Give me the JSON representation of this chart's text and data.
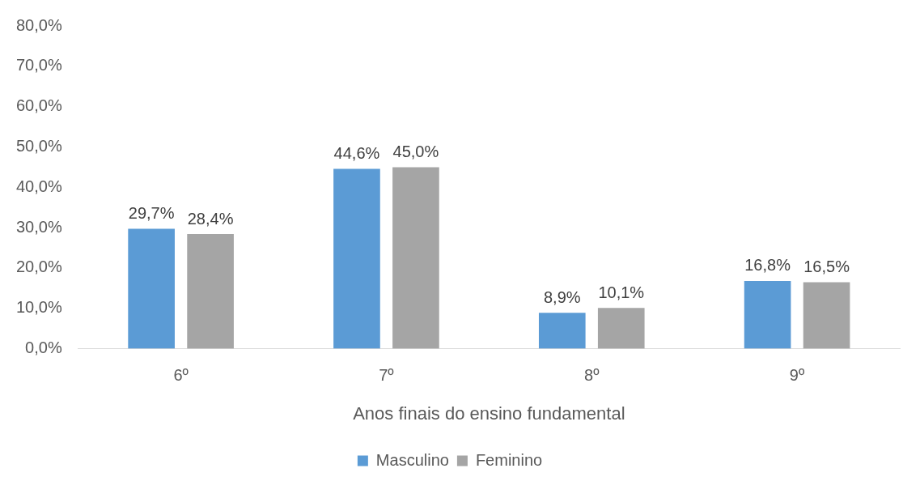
{
  "chart_data": {
    "type": "bar",
    "xlabel": "Anos finais do ensino fundamental",
    "categories": [
      "6º",
      "7º",
      "8º",
      "9º"
    ],
    "series": [
      {
        "name": "Masculino",
        "color": "#5b9bd5",
        "values": [
          29.7,
          44.6,
          8.9,
          16.8
        ],
        "value_labels": [
          "29,7%",
          "44,6%",
          "8,9%",
          "16,8%"
        ]
      },
      {
        "name": "Feminino",
        "color": "#a5a5a5",
        "values": [
          28.4,
          45.0,
          10.1,
          16.5
        ],
        "value_labels": [
          "28,4%",
          "45,0%",
          "10,1%",
          "16,5%"
        ]
      }
    ],
    "ylim": [
      0,
      80
    ],
    "yticks": [
      {
        "value": 0,
        "label": "0,0%"
      },
      {
        "value": 10,
        "label": "10,0%"
      },
      {
        "value": 20,
        "label": "20,0%"
      },
      {
        "value": 30,
        "label": "30,0%"
      },
      {
        "value": 40,
        "label": "40,0%"
      },
      {
        "value": 50,
        "label": "50,0%"
      },
      {
        "value": 60,
        "label": "60,0%"
      },
      {
        "value": 70,
        "label": "70,0%"
      },
      {
        "value": 80,
        "label": "80,0%"
      }
    ],
    "legend": "bottom"
  }
}
